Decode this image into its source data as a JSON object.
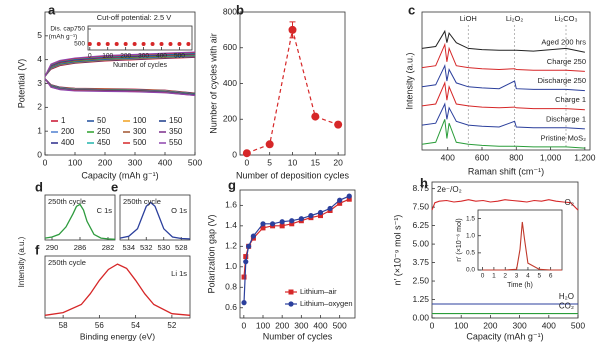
{
  "chart_data": [
    {
      "type": "line",
      "label": "a",
      "xlabel": "Capacity (mAh g⁻¹)",
      "ylabel": "Potential (V)",
      "xlim": [
        0,
        500
      ],
      "ylim": [
        0,
        6
      ],
      "xticks": [
        0,
        100,
        200,
        300,
        400,
        500
      ],
      "yticks": [
        0,
        1,
        2,
        3,
        4,
        5
      ],
      "legend": "grid-bottom-left",
      "x": [
        0,
        20,
        50,
        100,
        200,
        300,
        400,
        500
      ],
      "series": [
        {
          "name": "1",
          "color": "#c8102e",
          "values": [
            3.3,
            3.6,
            3.75,
            3.85,
            3.95,
            4.0,
            4.05,
            4.1
          ],
          "discharge": [
            3.2,
            2.95,
            2.85,
            2.8,
            2.78,
            2.76,
            2.72,
            2.6
          ]
        },
        {
          "name": "50",
          "color": "#1f4e9c",
          "values": [
            3.3,
            3.62,
            3.77,
            3.87,
            3.97,
            4.02,
            4.07,
            4.12
          ],
          "discharge": [
            3.2,
            2.94,
            2.84,
            2.79,
            2.77,
            2.75,
            2.71,
            2.59
          ]
        },
        {
          "name": "100",
          "color": "#f0a020",
          "values": [
            3.3,
            3.64,
            3.79,
            3.89,
            3.99,
            4.04,
            4.09,
            4.14
          ],
          "discharge": [
            3.2,
            2.93,
            2.83,
            2.78,
            2.76,
            2.74,
            2.7,
            2.58
          ]
        },
        {
          "name": "150",
          "color": "#1a3a8a",
          "values": [
            3.3,
            3.66,
            3.81,
            3.91,
            4.01,
            4.06,
            4.11,
            4.16
          ],
          "discharge": [
            3.2,
            2.92,
            2.82,
            2.77,
            2.75,
            2.73,
            2.69,
            2.57
          ]
        },
        {
          "name": "200",
          "color": "#4f7fd0",
          "values": [
            3.3,
            3.68,
            3.83,
            3.93,
            4.03,
            4.08,
            4.13,
            4.18
          ],
          "discharge": [
            3.2,
            2.91,
            2.81,
            2.76,
            2.74,
            2.72,
            2.68,
            2.56
          ]
        },
        {
          "name": "250",
          "color": "#2ca02c",
          "values": [
            3.3,
            3.7,
            3.85,
            3.95,
            4.05,
            4.1,
            4.15,
            4.2
          ],
          "discharge": [
            3.2,
            2.9,
            2.8,
            2.75,
            2.73,
            2.71,
            2.67,
            2.55
          ]
        },
        {
          "name": "300",
          "color": "#a0522d",
          "values": [
            3.3,
            3.72,
            3.87,
            3.97,
            4.07,
            4.12,
            4.17,
            4.22
          ],
          "discharge": [
            3.2,
            2.89,
            2.79,
            2.74,
            2.72,
            2.7,
            2.66,
            2.54
          ]
        },
        {
          "name": "350",
          "color": "#7b2d8b",
          "values": [
            3.3,
            3.74,
            3.89,
            3.99,
            4.09,
            4.14,
            4.19,
            4.24
          ],
          "discharge": [
            3.2,
            2.88,
            2.78,
            2.73,
            2.71,
            2.69,
            2.65,
            2.53
          ]
        },
        {
          "name": "400",
          "color": "#2a2a8a",
          "values": [
            3.3,
            3.76,
            3.91,
            4.01,
            4.11,
            4.16,
            4.21,
            4.26
          ],
          "discharge": [
            3.2,
            2.87,
            2.77,
            2.72,
            2.7,
            2.68,
            2.64,
            2.52
          ]
        },
        {
          "name": "450",
          "color": "#20b2aa",
          "values": [
            3.3,
            3.78,
            3.93,
            4.03,
            4.13,
            4.18,
            4.23,
            4.28
          ],
          "discharge": [
            3.2,
            2.86,
            2.76,
            2.71,
            2.69,
            2.67,
            2.63,
            2.51
          ]
        },
        {
          "name": "500",
          "color": "#d62728",
          "values": [
            3.3,
            3.8,
            3.95,
            4.05,
            4.15,
            4.2,
            4.25,
            4.3
          ],
          "discharge": [
            3.2,
            2.85,
            2.75,
            2.7,
            2.68,
            2.66,
            2.62,
            2.5
          ]
        },
        {
          "name": "550",
          "color": "#8e44ad",
          "values": [
            3.3,
            3.82,
            3.97,
            4.07,
            4.17,
            4.22,
            4.27,
            4.32
          ],
          "discharge": [
            3.2,
            2.84,
            2.74,
            2.69,
            2.67,
            2.65,
            2.61,
            2.5
          ]
        }
      ],
      "inset": {
        "type": "scatter",
        "annotation": "Cut-off potential: 2.5 V",
        "xlabel": "Number of cycles",
        "ylabel": [
          "Dis. cap.",
          "(mAh g⁻¹)"
        ],
        "xlim": [
          -10,
          570
        ],
        "ylim": [
          400,
          800
        ],
        "xticks": [
          0,
          100,
          200,
          300,
          400,
          500
        ],
        "yticks": [
          500,
          750
        ],
        "color": "#d62728",
        "x": [
          0,
          50,
          100,
          150,
          200,
          250,
          300,
          350,
          400,
          450,
          500,
          550
        ],
        "values": [
          500,
          500,
          500,
          500,
          500,
          500,
          500,
          500,
          500,
          500,
          500,
          500
        ]
      }
    },
    {
      "type": "line",
      "label": "b",
      "xlabel": "Number of deposition cycles",
      "ylabel": "Number of cycles with air",
      "xlim": [
        -1.5,
        21.5
      ],
      "ylim": [
        0,
        800
      ],
      "xticks": [
        0,
        5,
        10,
        15,
        20
      ],
      "yticks": [
        0,
        200,
        400,
        600,
        800
      ],
      "dashed": true,
      "marker": "circle",
      "color": "#d62728",
      "x": [
        0,
        5,
        10,
        15,
        20
      ],
      "values": [
        10,
        60,
        700,
        215,
        170
      ],
      "errors": [
        0,
        0,
        45,
        0,
        0
      ]
    },
    {
      "type": "spectra",
      "label": "c",
      "xlabel": "Raman shift (cm⁻¹)",
      "ylabel": "Intensity (a.u.)",
      "xlim": [
        250,
        1230
      ],
      "ylim": [
        0,
        3.6
      ],
      "xticks": [
        400,
        600,
        800,
        {
          "value": 1000,
          "label": "1,000"
        },
        {
          "value": 1200,
          "label": "1,200"
        }
      ],
      "annotations": [
        {
          "text": "LiOH",
          "x": 520
        },
        {
          "text": "Li₂O₂",
          "x": 790
        },
        {
          "text": "Li₂CO₃",
          "x": 1090
        }
      ],
      "x": [
        250,
        330,
        383,
        395,
        408,
        450,
        520,
        600,
        700,
        790,
        800,
        900,
        1090,
        1200
      ],
      "series": [
        {
          "name": "Aged 200 hrs",
          "color": "#222222",
          "values": [
            0.15,
            0.2,
            0.6,
            0.3,
            0.55,
            0.3,
            0.15,
            0.12,
            0.1,
            0.1,
            0.1,
            0.08,
            0.15,
            0.05
          ]
        },
        {
          "name": "Charge 250",
          "color": "#d62728",
          "values": [
            0.15,
            0.2,
            0.75,
            0.3,
            0.65,
            0.2,
            0.15,
            0.12,
            0.1,
            0.12,
            0.1,
            0.08,
            0.08,
            0.05
          ]
        },
        {
          "name": "Discharge 250",
          "color": "#2b3f9c",
          "values": [
            0.15,
            0.2,
            0.7,
            0.3,
            0.6,
            0.25,
            0.15,
            0.12,
            0.1,
            0.3,
            0.1,
            0.08,
            0.08,
            0.05
          ]
        },
        {
          "name": "Charge 1",
          "color": "#d62728",
          "values": [
            0.15,
            0.2,
            0.75,
            0.3,
            0.65,
            0.2,
            0.15,
            0.12,
            0.1,
            0.12,
            0.1,
            0.08,
            0.08,
            0.05
          ]
        },
        {
          "name": "Discharge 1",
          "color": "#2b3f9c",
          "values": [
            0.15,
            0.2,
            0.7,
            0.3,
            0.6,
            0.25,
            0.15,
            0.12,
            0.1,
            0.25,
            0.1,
            0.08,
            0.08,
            0.05
          ]
        },
        {
          "name": "Pristine MoS₂",
          "color": "#2a9d3a",
          "values": [
            0.15,
            0.2,
            0.8,
            0.3,
            0.7,
            0.2,
            0.15,
            0.12,
            0.1,
            0.1,
            0.1,
            0.08,
            0.08,
            0.05
          ]
        }
      ]
    },
    {
      "type": "xps",
      "label": "d",
      "note": "250th cycle",
      "peak": "C 1s",
      "ylabel": "Intensity (a.u.)",
      "color": "#2e9b3e",
      "xlim": [
        291,
        281
      ],
      "ylim": [
        0,
        1.2
      ],
      "xticks": [
        290,
        286,
        282
      ],
      "x": [
        291,
        290,
        289,
        288,
        287,
        286.5,
        286,
        285.5,
        285,
        284,
        283,
        282,
        281
      ],
      "values": [
        0.05,
        0.08,
        0.15,
        0.35,
        0.7,
        0.9,
        0.95,
        0.8,
        0.5,
        0.15,
        0.05,
        0.03,
        0.02
      ]
    },
    {
      "type": "xps",
      "label": "e",
      "note": "250th cycle",
      "peak": "O 1s",
      "color": "#2b3f9c",
      "xlim": [
        535,
        527
      ],
      "ylim": [
        0,
        1.2
      ],
      "xticks": [
        534,
        532,
        530,
        528
      ],
      "x": [
        535,
        534,
        533,
        532.5,
        532,
        531.5,
        531,
        530.5,
        530,
        529,
        528,
        527
      ],
      "values": [
        0.05,
        0.1,
        0.3,
        0.6,
        0.9,
        1.0,
        0.9,
        0.6,
        0.3,
        0.08,
        0.04,
        0.03
      ]
    },
    {
      "type": "xps",
      "label": "f",
      "note": "250th cycle",
      "peak": "Li 1s",
      "xlabel": "Binding energy (eV)",
      "color": "#d62728",
      "xlim": [
        59,
        51
      ],
      "ylim": [
        0,
        1.15
      ],
      "xticks": [
        58,
        56,
        54,
        52
      ],
      "x": [
        59,
        58,
        57,
        56.5,
        56,
        55.5,
        55,
        54.5,
        54,
        53.5,
        53,
        52,
        51
      ],
      "values": [
        0.05,
        0.1,
        0.25,
        0.45,
        0.7,
        0.9,
        1.0,
        0.92,
        0.7,
        0.45,
        0.25,
        0.08,
        0.05
      ]
    },
    {
      "type": "line",
      "label": "g",
      "xlabel": "Number of cycles",
      "ylabel": "Polarization gap (V)",
      "legend": "lower-right",
      "xlim": [
        -20,
        580
      ],
      "ylim": [
        0.5,
        1.75
      ],
      "xticks": [
        0,
        100,
        200,
        300,
        400,
        500
      ],
      "yticks": [
        0.6,
        0.8,
        {
          "value": 1,
          "label": "1.0"
        },
        1.2,
        1.4,
        1.6
      ],
      "x": [
        1,
        10,
        25,
        50,
        100,
        150,
        200,
        250,
        300,
        350,
        400,
        450,
        500,
        550
      ],
      "series": [
        {
          "name": "Lithium–air",
          "color": "#d62728",
          "marker": "square",
          "values": [
            0.9,
            1.1,
            1.2,
            1.28,
            1.38,
            1.4,
            1.4,
            1.42,
            1.45,
            1.48,
            1.5,
            1.55,
            1.62,
            1.66
          ]
        },
        {
          "name": "Lithium–oxygen",
          "color": "#2b3f9c",
          "marker": "circle",
          "values": [
            0.65,
            1.05,
            1.2,
            1.3,
            1.42,
            1.42,
            1.44,
            1.45,
            1.47,
            1.5,
            1.53,
            1.57,
            1.65,
            1.69
          ]
        }
      ]
    },
    {
      "type": "line",
      "label": "h",
      "xlabel": "Capacity (mAh g⁻¹)",
      "ylabel": "n′ (×10⁻⁹ mol s⁻¹)",
      "annotation": "2e⁻/O₂",
      "legend": "line-end",
      "xlim": [
        0,
        500
      ],
      "ylim": [
        0,
        9.2
      ],
      "xticks": [
        0,
        100,
        200,
        300,
        400,
        500
      ],
      "yticks": [
        {
          "value": 0,
          "label": "0.00"
        },
        1.25,
        {
          "value": 2.5,
          "label": "2.50"
        },
        3.75,
        {
          "value": 5,
          "label": "5.00"
        },
        6.25,
        {
          "value": 7.5,
          "label": "7.50"
        },
        8.75
      ],
      "x": [
        0,
        10,
        25,
        50,
        75,
        100,
        125,
        150,
        175,
        200,
        225,
        250,
        275,
        300,
        325,
        350,
        375,
        400,
        425,
        450,
        475,
        500
      ],
      "series": [
        {
          "name": "O₂",
          "color": "#d62728",
          "values": [
            7.3,
            7.8,
            7.9,
            7.95,
            7.85,
            7.9,
            8.0,
            7.9,
            7.95,
            7.85,
            7.9,
            8.0,
            7.95,
            7.9,
            7.85,
            7.95,
            7.9,
            8.0,
            7.9,
            7.85,
            7.8,
            7.3
          ]
        },
        {
          "name": "H₂O",
          "color": "#2b3f9c",
          "values": [
            0.95,
            0.95,
            0.95,
            0.95,
            0.95,
            0.95,
            0.95,
            0.95,
            0.95,
            0.95,
            0.95,
            0.95,
            0.95,
            0.95,
            0.95,
            0.95,
            0.95,
            0.95,
            0.95,
            0.95,
            0.95,
            0.95
          ]
        },
        {
          "name": "CO₂",
          "color": "#2a9d3a",
          "values": [
            0.3,
            0.3,
            0.3,
            0.3,
            0.3,
            0.3,
            0.3,
            0.3,
            0.3,
            0.3,
            0.3,
            0.3,
            0.3,
            0.3,
            0.3,
            0.3,
            0.3,
            0.3,
            0.3,
            0.3,
            0.3,
            0.3
          ]
        }
      ],
      "inset": {
        "type": "line",
        "xlabel": "Time (h)",
        "ylabel": "n′ (×10⁻⁶ mol)",
        "color": "#c0392b",
        "xlim": [
          -0.4,
          7
        ],
        "ylim": [
          0,
          1.75
        ],
        "xticks": [
          0,
          1,
          2,
          3,
          4,
          5,
          6
        ],
        "yticks": [
          {
            "value": 0,
            "label": "0.0"
          },
          0.5,
          {
            "value": 1,
            "label": "1.0"
          },
          1.5
        ],
        "x": [
          0,
          1,
          2,
          3,
          3.3,
          3.5,
          3.7,
          4,
          5,
          6,
          7
        ],
        "values": [
          0,
          0,
          0,
          0.02,
          0.6,
          1.4,
          0.9,
          0.2,
          0.02,
          0,
          0
        ]
      }
    }
  ]
}
